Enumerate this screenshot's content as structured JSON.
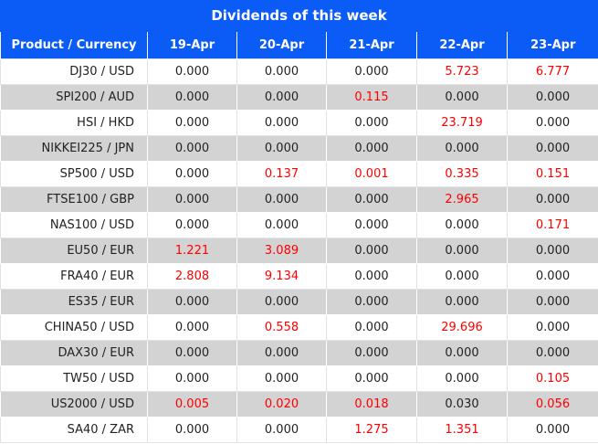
{
  "header": {
    "title": "Dividends of this week"
  },
  "table": {
    "columns": [
      "Product / Currency",
      "19-Apr",
      "20-Apr",
      "21-Apr",
      "22-Apr",
      "23-Apr"
    ],
    "rows": [
      {
        "label": "DJ30 / USD",
        "values": [
          "0.000",
          "0.000",
          "0.000",
          "5.723",
          "6.777"
        ],
        "colors": [
          "black",
          "black",
          "black",
          "red",
          "red"
        ]
      },
      {
        "label": "SPI200 / AUD",
        "values": [
          "0.000",
          "0.000",
          "0.115",
          "0.000",
          "0.000"
        ],
        "colors": [
          "black",
          "black",
          "red",
          "black",
          "black"
        ]
      },
      {
        "label": "HSI / HKD",
        "values": [
          "0.000",
          "0.000",
          "0.000",
          "23.719",
          "0.000"
        ],
        "colors": [
          "black",
          "black",
          "black",
          "red",
          "black"
        ]
      },
      {
        "label": "NIKKEI225 / JPN",
        "values": [
          "0.000",
          "0.000",
          "0.000",
          "0.000",
          "0.000"
        ],
        "colors": [
          "black",
          "black",
          "black",
          "black",
          "black"
        ]
      },
      {
        "label": "SP500 / USD",
        "values": [
          "0.000",
          "0.137",
          "0.001",
          "0.335",
          "0.151"
        ],
        "colors": [
          "black",
          "red",
          "red",
          "red",
          "red"
        ]
      },
      {
        "label": "FTSE100 / GBP",
        "values": [
          "0.000",
          "0.000",
          "0.000",
          "2.965",
          "0.000"
        ],
        "colors": [
          "black",
          "black",
          "black",
          "red",
          "black"
        ]
      },
      {
        "label": "NAS100 / USD",
        "values": [
          "0.000",
          "0.000",
          "0.000",
          "0.000",
          "0.171"
        ],
        "colors": [
          "black",
          "black",
          "black",
          "black",
          "red"
        ]
      },
      {
        "label": "EU50 / EUR",
        "values": [
          "1.221",
          "3.089",
          "0.000",
          "0.000",
          "0.000"
        ],
        "colors": [
          "red",
          "red",
          "black",
          "black",
          "black"
        ]
      },
      {
        "label": "FRA40 / EUR",
        "values": [
          "2.808",
          "9.134",
          "0.000",
          "0.000",
          "0.000"
        ],
        "colors": [
          "red",
          "red",
          "black",
          "black",
          "black"
        ]
      },
      {
        "label": "ES35 / EUR",
        "values": [
          "0.000",
          "0.000",
          "0.000",
          "0.000",
          "0.000"
        ],
        "colors": [
          "black",
          "black",
          "black",
          "black",
          "black"
        ]
      },
      {
        "label": "CHINA50 / USD",
        "values": [
          "0.000",
          "0.558",
          "0.000",
          "29.696",
          "0.000"
        ],
        "colors": [
          "black",
          "red",
          "black",
          "red",
          "black"
        ]
      },
      {
        "label": "DAX30 / EUR",
        "values": [
          "0.000",
          "0.000",
          "0.000",
          "0.000",
          "0.000"
        ],
        "colors": [
          "black",
          "black",
          "black",
          "black",
          "black"
        ]
      },
      {
        "label": "TW50 / USD",
        "values": [
          "0.000",
          "0.000",
          "0.000",
          "0.000",
          "0.105"
        ],
        "colors": [
          "black",
          "black",
          "black",
          "black",
          "red"
        ]
      },
      {
        "label": "US2000 / USD",
        "values": [
          "0.005",
          "0.020",
          "0.018",
          "0.030",
          "0.056"
        ],
        "colors": [
          "red",
          "red",
          "red",
          "black",
          "red"
        ]
      },
      {
        "label": "SA40 / ZAR",
        "values": [
          "0.000",
          "0.000",
          "1.275",
          "1.351",
          "0.000"
        ],
        "colors": [
          "black",
          "black",
          "red",
          "red",
          "black"
        ]
      }
    ]
  }
}
